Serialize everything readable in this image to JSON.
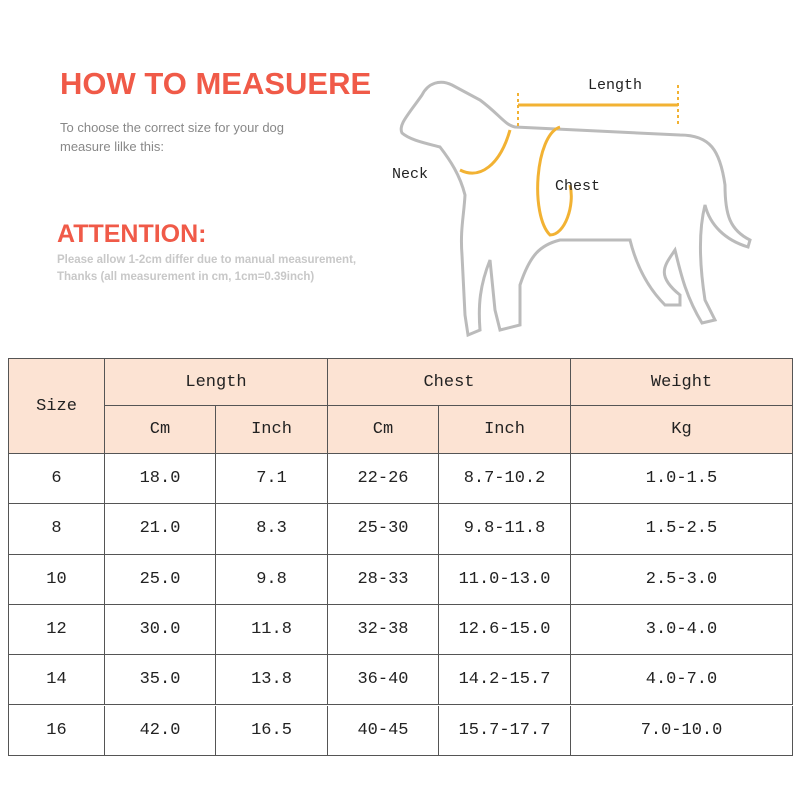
{
  "header": {
    "title": "HOW TO MEASUERE",
    "subtitle_lines": [
      "To choose the correct size for your dog",
      "measure lilke this:"
    ],
    "attention": "ATTENTION:",
    "note_lines": [
      "Please allow 1-2cm differ due to manual measurement,",
      "Thanks (all measurement in cm, 1cm=0.39inch)"
    ]
  },
  "diagram": {
    "labels": {
      "length": "Length",
      "neck": "Neck",
      "chest": "Chest"
    }
  },
  "table": {
    "size_header": "Size",
    "groups": [
      "Length",
      "Chest",
      "Weight"
    ],
    "units": [
      "Cm",
      "Inch",
      "Cm",
      "Inch",
      "Kg"
    ],
    "rows": [
      [
        "6",
        "18.0",
        "7.1",
        "22-26",
        "8.7-10.2",
        "1.0-1.5"
      ],
      [
        "8",
        "21.0",
        "8.3",
        "25-30",
        "9.8-11.8",
        "1.5-2.5"
      ],
      [
        "10",
        "25.0",
        "9.8",
        "28-33",
        "11.0-13.0",
        "2.5-3.0"
      ],
      [
        "12",
        "30.0",
        "11.8",
        "32-38",
        "12.6-15.0",
        "3.0-4.0"
      ],
      [
        "14",
        "35.0",
        "13.8",
        "36-40",
        "14.2-15.7",
        "4.0-7.0"
      ],
      [
        "16",
        "42.0",
        "16.5",
        "40-45",
        "15.7-17.7",
        "7.0-10.0"
      ]
    ]
  }
}
